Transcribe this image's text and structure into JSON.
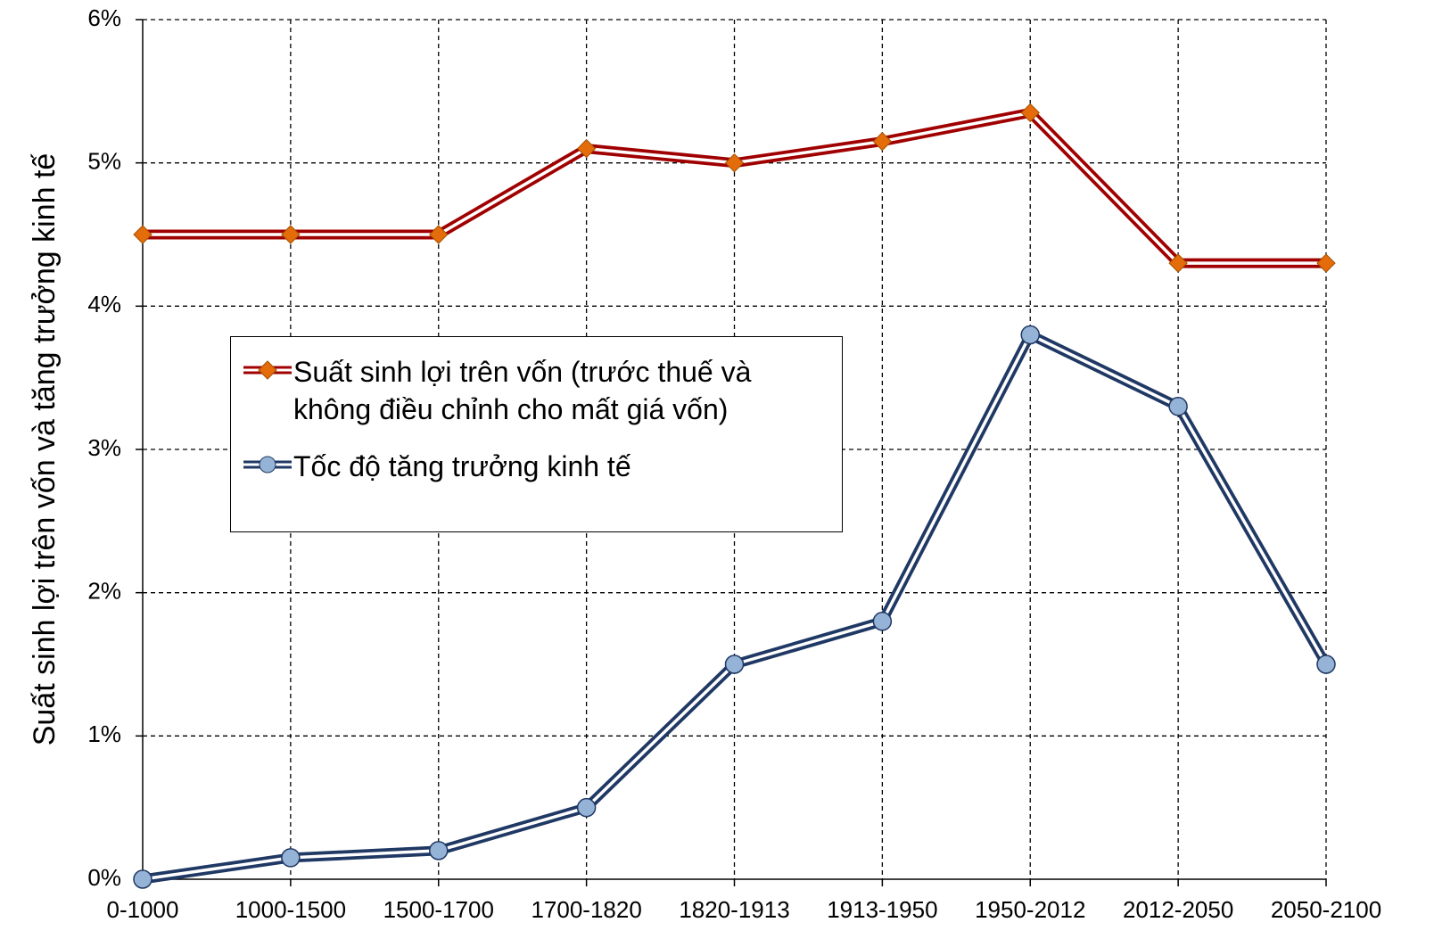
{
  "chart_data": {
    "type": "line",
    "ylabel": "Suất sinh lợi trên vốn và tăng trưởng kinh tế",
    "categories": [
      "0-1000",
      "1000-1500",
      "1500-1700",
      "1700-1820",
      "1820-1913",
      "1913-1950",
      "1950-2012",
      "2012-2050",
      "2050-2100"
    ],
    "series": [
      {
        "name": "Suất sinh lợi trên vốn (trước thuế và không điều chỉnh cho mất giá vốn)",
        "color": "#a00000",
        "marker_color": "#e46c0a",
        "marker": "diamond",
        "values": [
          4.5,
          4.5,
          4.5,
          5.1,
          5.0,
          5.15,
          5.35,
          4.3,
          4.3
        ]
      },
      {
        "name": "Tốc độ tăng trưởng kinh tế",
        "color": "#1f3864",
        "marker_color": "#95b3d7",
        "marker": "circle",
        "values": [
          0.0,
          0.15,
          0.2,
          0.5,
          1.5,
          1.8,
          3.8,
          3.3,
          1.5
        ]
      }
    ],
    "ylim": [
      0,
      6
    ],
    "yticks": [
      {
        "value": 0,
        "label": "0%"
      },
      {
        "value": 1,
        "label": "1%"
      },
      {
        "value": 2,
        "label": "2%"
      },
      {
        "value": 3,
        "label": "3%"
      },
      {
        "value": 4,
        "label": "4%"
      },
      {
        "value": 5,
        "label": "5%"
      },
      {
        "value": 6,
        "label": "6%"
      }
    ],
    "grid": true
  }
}
